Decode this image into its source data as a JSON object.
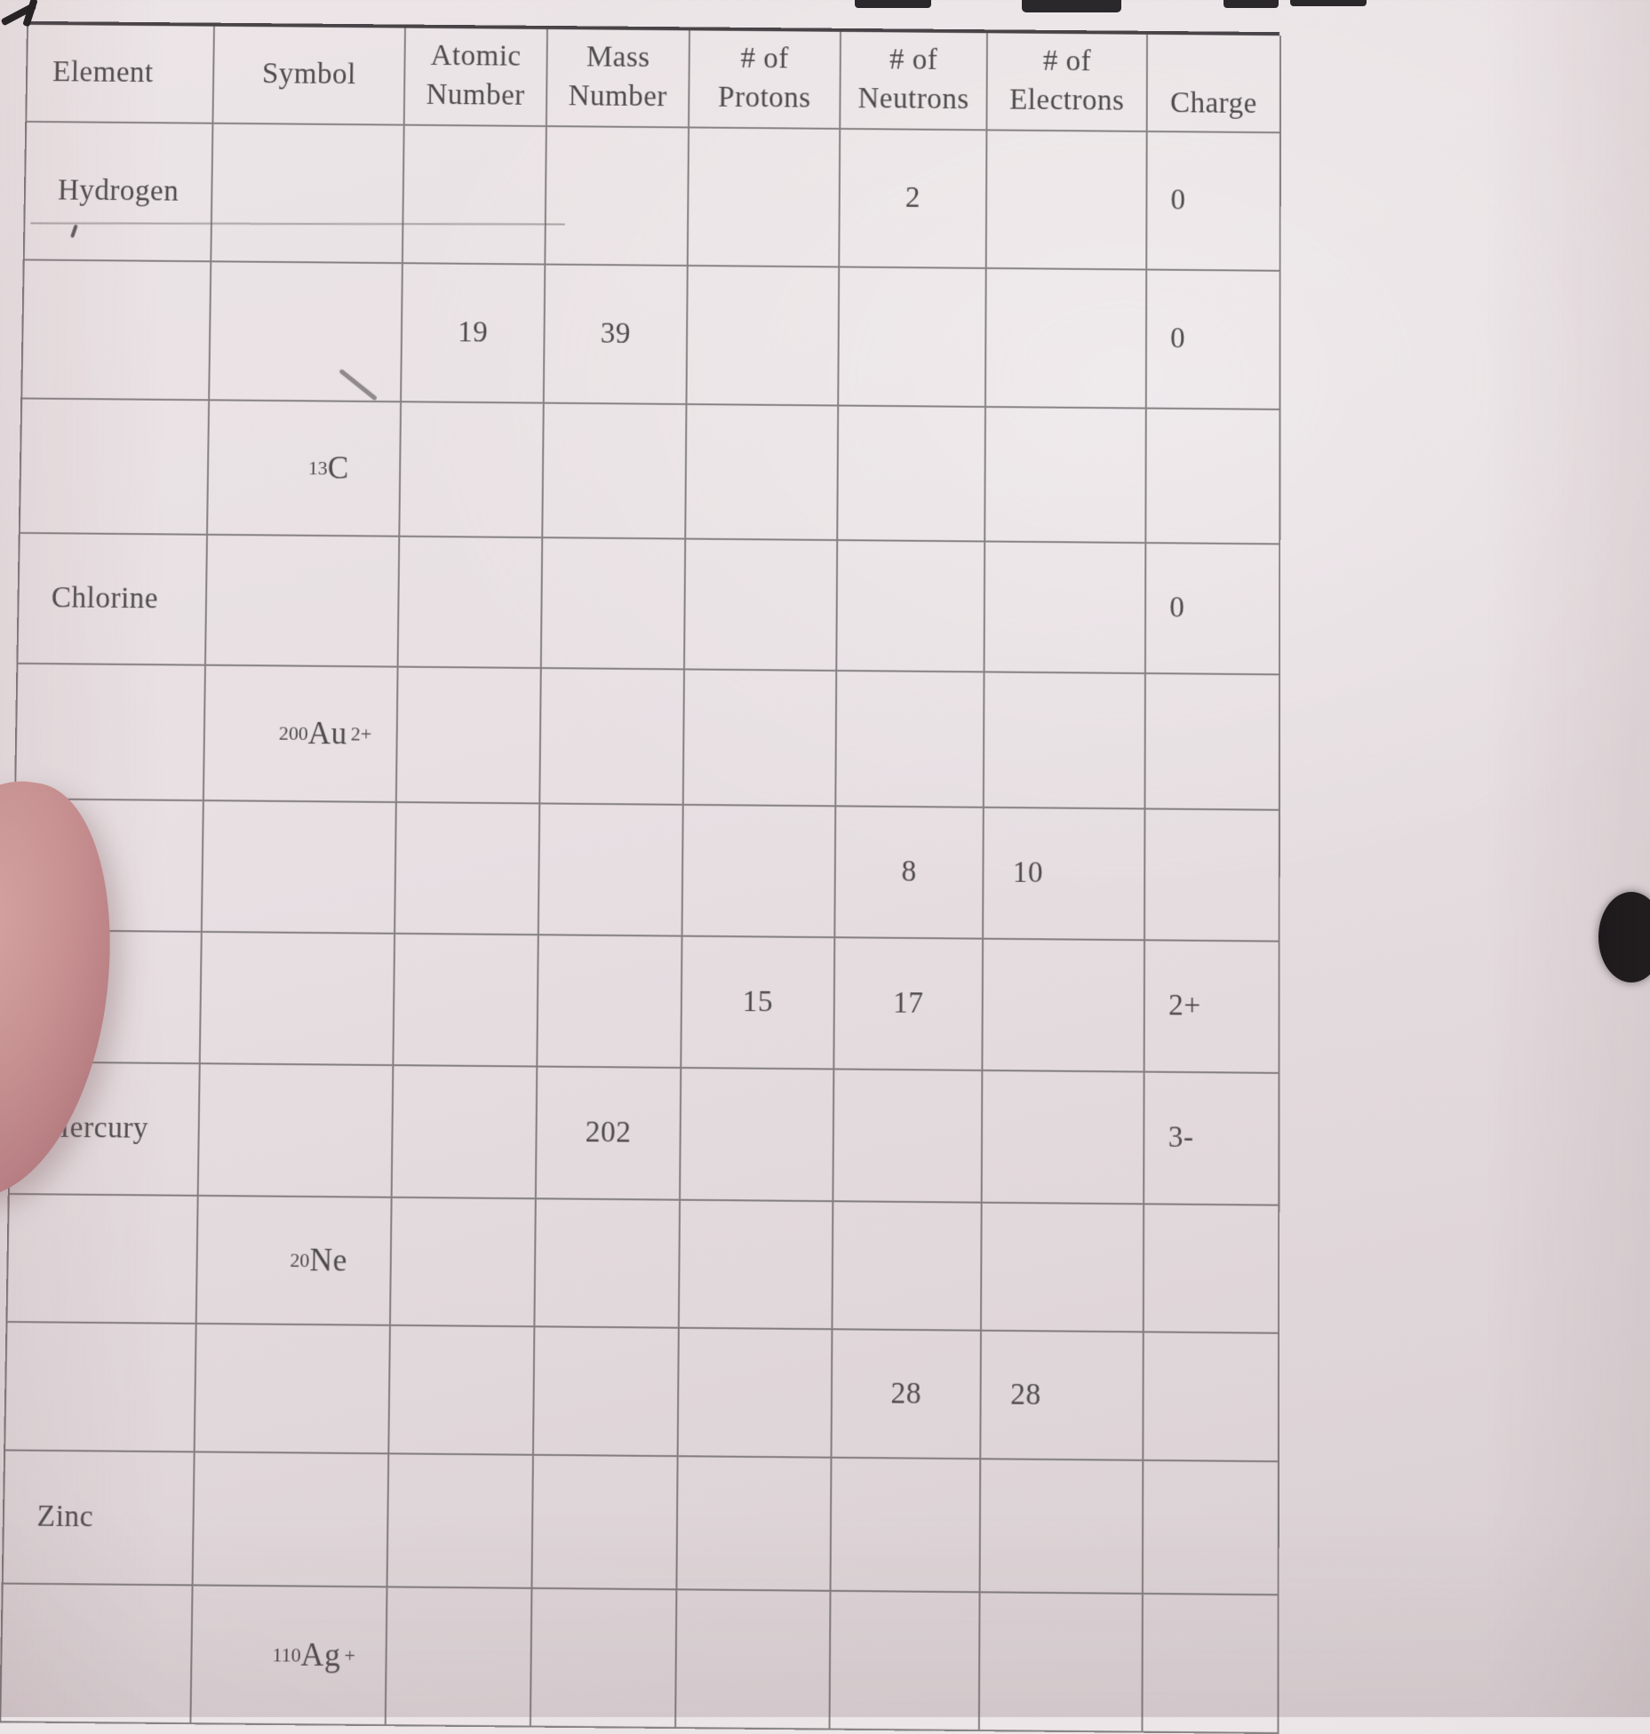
{
  "table": {
    "columns": [
      "element",
      "symbol",
      "atomic_number",
      "mass_number",
      "protons",
      "neutrons",
      "electrons",
      "charge"
    ],
    "headers": [
      "Element",
      "Symbol",
      "Atomic\nNumber",
      "Mass\nNumber",
      "# of\nProtons",
      "# of\nNeutrons",
      "# of\nElectrons",
      "Charge"
    ],
    "rows": [
      {
        "element": "Hydrogen",
        "symbol": "",
        "atomic_number": "",
        "mass_number": "",
        "protons": "",
        "neutrons": "2",
        "electrons": "",
        "charge": "0"
      },
      {
        "element": "",
        "symbol": "",
        "atomic_number": "19",
        "mass_number": "39",
        "protons": "",
        "neutrons": "",
        "electrons": "",
        "charge": "0"
      },
      {
        "element": "",
        "symbol": {
          "mass": "13",
          "base": "C",
          "charge": ""
        },
        "atomic_number": "",
        "mass_number": "",
        "protons": "",
        "neutrons": "",
        "electrons": "",
        "charge": ""
      },
      {
        "element": "Chlorine",
        "symbol": "",
        "atomic_number": "",
        "mass_number": "",
        "protons": "",
        "neutrons": "",
        "electrons": "",
        "charge": "0"
      },
      {
        "element": "",
        "symbol": {
          "mass": "200",
          "base": "Au",
          "charge": "2+"
        },
        "atomic_number": "",
        "mass_number": "",
        "protons": "",
        "neutrons": "",
        "electrons": "",
        "charge": ""
      },
      {
        "element": "",
        "symbol": "",
        "atomic_number": "",
        "mass_number": "",
        "protons": "",
        "neutrons": "8",
        "electrons": "10",
        "charge": ""
      },
      {
        "element": "",
        "symbol": "",
        "atomic_number": "",
        "mass_number": "",
        "protons": "15",
        "neutrons": "17",
        "electrons": "",
        "charge": "2+"
      },
      {
        "element": "Mercury",
        "symbol": "",
        "atomic_number": "",
        "mass_number": "202",
        "protons": "",
        "neutrons": "",
        "electrons": "",
        "charge": "3-"
      },
      {
        "element": "",
        "symbol": {
          "mass": "20",
          "base": "Ne",
          "charge": ""
        },
        "atomic_number": "",
        "mass_number": "",
        "protons": "",
        "neutrons": "",
        "electrons": "",
        "charge": ""
      },
      {
        "element": "",
        "symbol": "",
        "atomic_number": "",
        "mass_number": "",
        "protons": "",
        "neutrons": "28",
        "electrons": "28",
        "charge": ""
      },
      {
        "element": "Zinc",
        "symbol": "",
        "atomic_number": "",
        "mass_number": "",
        "protons": "",
        "neutrons": "",
        "electrons": "",
        "charge": ""
      },
      {
        "element": "",
        "symbol": {
          "mass": "110",
          "base": "Ag",
          "charge": "+"
        },
        "atomic_number": "",
        "mass_number": "",
        "protons": "",
        "neutrons": "",
        "electrons": "",
        "charge": ""
      }
    ]
  },
  "photo_artifacts": {
    "finger": "fingertip of person holding paper, lower-left edge",
    "dark_spot": "dark round spot at right edge of photo",
    "top_edge_marks": "dark marks along top edge of page",
    "pencil_slash": "stray pencil slash in row 2 symbol cell",
    "partial_line": "faint extra rule line below Hydrogen row",
    "stray_mark": "small comma-like stray mark below Hydrogen row"
  },
  "colors": {
    "paper": "#e9e1e3",
    "grid_line": "#8a8689",
    "ink": "#4f4b4d",
    "finger": "#c79093",
    "dark_spot": "#141214"
  }
}
